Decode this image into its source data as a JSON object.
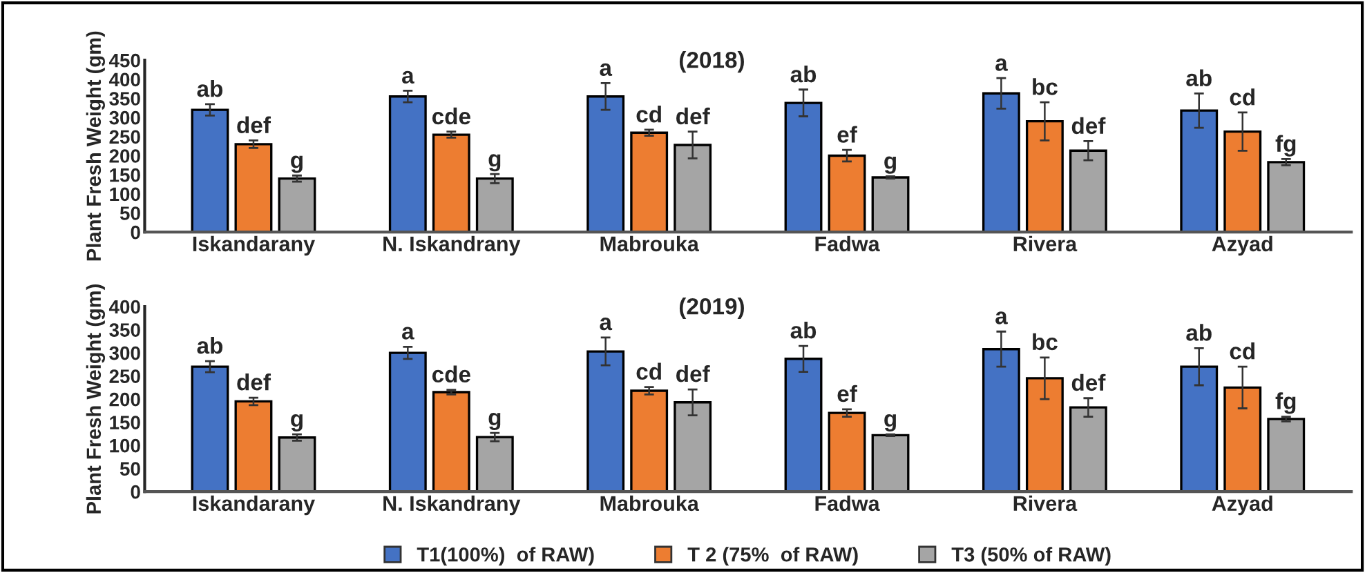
{
  "chart_data": [
    {
      "type": "bar",
      "title": "(2018)",
      "ylabel": "Plant Fresh Weight (gm)",
      "categories": [
        "Iskandarany",
        "N. Iskandrany",
        "Mabrouka",
        "Fadwa",
        "Rivera",
        "Azyad"
      ],
      "ylim": [
        0,
        450
      ],
      "yticks": [
        0,
        50,
        100,
        150,
        200,
        250,
        300,
        350,
        400,
        450
      ],
      "grid": false,
      "legend": false,
      "series": [
        {
          "color": "#4472c4",
          "values": [
            320,
            355,
            355,
            338,
            363,
            318
          ],
          "errors": [
            15,
            15,
            35,
            35,
            40,
            45
          ],
          "value_labels": [
            "ab",
            "a",
            "a",
            "ab",
            "a",
            "ab"
          ]
        },
        {
          "color": "#ed7d31",
          "values": [
            230,
            255,
            260,
            200,
            290,
            263
          ],
          "errors": [
            10,
            8,
            8,
            15,
            50,
            50
          ],
          "value_labels": [
            "def",
            "cde",
            "cd",
            "ef",
            "bc",
            "cd"
          ]
        },
        {
          "color": "#a5a5a5",
          "values": [
            140,
            140,
            228,
            143,
            213,
            183
          ],
          "errors": [
            8,
            12,
            35,
            3,
            25,
            8
          ],
          "value_labels": [
            "g",
            "g",
            "def",
            "g",
            "def",
            "fg"
          ]
        }
      ]
    },
    {
      "type": "bar",
      "title": "(2019)",
      "ylabel": "Plant Fresh Weight (gm)",
      "categories": [
        "Iskandarany",
        "N. Iskandrany",
        "Mabrouka",
        "Fadwa",
        "Rivera",
        "Azyad"
      ],
      "ylim": [
        0,
        400
      ],
      "yticks": [
        0,
        50,
        100,
        150,
        200,
        250,
        300,
        350,
        400
      ],
      "grid": false,
      "legend": "bottom",
      "series": [
        {
          "name": "T1(100%)  of RAW)",
          "color": "#4472c4",
          "values": [
            270,
            300,
            303,
            287,
            308,
            270
          ],
          "errors": [
            12,
            13,
            30,
            28,
            38,
            40
          ],
          "value_labels": [
            "ab",
            "a",
            "a",
            "ab",
            "a",
            "ab"
          ]
        },
        {
          "name": "T 2 (75%  of RAW)",
          "color": "#ed7d31",
          "values": [
            195,
            215,
            218,
            170,
            245,
            225
          ],
          "errors": [
            8,
            5,
            8,
            8,
            45,
            45
          ],
          "value_labels": [
            "def",
            "cde",
            "cd",
            "ef",
            "bc",
            "cd"
          ]
        },
        {
          "name": "T3 (50% of RAW)",
          "color": "#a5a5a5",
          "values": [
            117,
            118,
            193,
            122,
            182,
            157
          ],
          "errors": [
            7,
            9,
            28,
            2,
            20,
            5
          ],
          "value_labels": [
            "g",
            "g",
            "def",
            "g",
            "def",
            "fg"
          ]
        }
      ]
    }
  ]
}
